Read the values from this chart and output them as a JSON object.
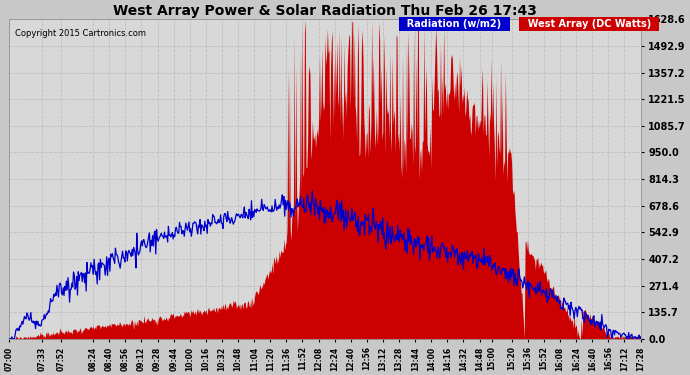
{
  "title": "West Array Power & Solar Radiation Thu Feb 26 17:43",
  "copyright": "Copyright 2015 Cartronics.com",
  "legend_radiation": "Radiation (w/m2)",
  "legend_west": "West Array (DC Watts)",
  "radiation_color": "#0000cc",
  "west_color": "#cc0000",
  "west_fill": "#cc0000",
  "background_color": "#c8c8c8",
  "plot_bg_color": "#d8d8d8",
  "grid_color": "#aaaaaa",
  "title_color": "#000000",
  "text_color": "#000000",
  "tick_color": "#000000",
  "legend_rad_bg": "#0000cc",
  "legend_west_bg": "#cc0000",
  "ymin": 0.0,
  "ymax": 1628.6,
  "yticks": [
    0.0,
    135.7,
    271.4,
    407.2,
    542.9,
    678.6,
    814.3,
    950.0,
    1085.7,
    1221.5,
    1357.2,
    1492.9,
    1628.6
  ],
  "start_hour": 7.0,
  "end_hour": 17.467,
  "n_points": 800,
  "xtick_labels": [
    "07:00",
    "07:33",
    "07:52",
    "08:24",
    "08:40",
    "08:56",
    "09:12",
    "09:28",
    "09:44",
    "10:00",
    "10:16",
    "10:32",
    "10:48",
    "11:04",
    "11:20",
    "11:36",
    "11:52",
    "12:08",
    "12:24",
    "12:40",
    "12:56",
    "13:12",
    "13:28",
    "13:44",
    "14:00",
    "14:16",
    "14:32",
    "14:48",
    "15:00",
    "15:20",
    "15:36",
    "15:52",
    "16:08",
    "16:24",
    "16:40",
    "16:56",
    "17:12",
    "17:28"
  ]
}
